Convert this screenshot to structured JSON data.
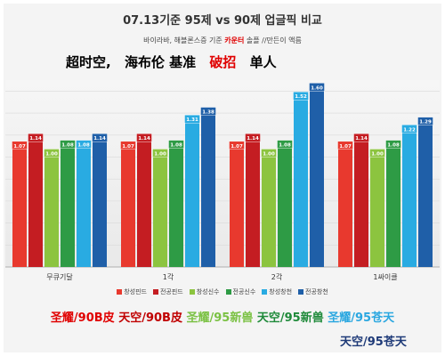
{
  "title": "07.13기준 95제 vs 90제 업글픽 비교",
  "subtitle_before": "바이라바, 해블론스증 기준 ",
  "subtitle_highlight": "카운터",
  "subtitle_after": " 솔플 //만든이 액름",
  "headline": {
    "part1": "超时空,",
    "part2": "海布伦 基准",
    "part3": "破招",
    "part4": "单人"
  },
  "bottom_labels": [
    {
      "text": "圣耀/90B皮",
      "color": "#e00000"
    },
    {
      "text": "天空/90B皮",
      "color": "#c00000"
    },
    {
      "text": "圣耀/95新兽",
      "color": "#7ac143"
    },
    {
      "text": "天空/95新兽",
      "color": "#1f8a3a"
    },
    {
      "text": "圣耀/95苍天",
      "color": "#2aa7e0"
    }
  ],
  "bottom_label_last": "天空/95苍天",
  "chart_data": {
    "type": "bar",
    "title": "07.13기준 95제 vs 90제 업글픽 비교",
    "categories": [
      "무큐기달",
      "1각",
      "2각",
      "1싸이클"
    ],
    "series": [
      {
        "name": "창성핀드",
        "color": "#e8392e",
        "values": [
          1.07,
          1.07,
          1.07,
          1.07
        ]
      },
      {
        "name": "전공핀드",
        "color": "#c41d22",
        "values": [
          1.14,
          1.14,
          1.14,
          1.14
        ]
      },
      {
        "name": "창성신수",
        "color": "#8cc43f",
        "values": [
          1.0,
          1.0,
          1.0,
          1.0
        ]
      },
      {
        "name": "전공신수",
        "color": "#2e9b45",
        "values": [
          1.08,
          1.08,
          1.08,
          1.08
        ]
      },
      {
        "name": "창성창천",
        "color": "#29abe2",
        "values": [
          1.08,
          1.31,
          1.52,
          1.22
        ]
      },
      {
        "name": "전공창천",
        "color": "#1f5fa8",
        "values": [
          1.14,
          1.38,
          1.6,
          1.29
        ]
      }
    ],
    "ylim": [
      0,
      1.7
    ],
    "xlabel": "",
    "ylabel": "",
    "grid": true,
    "legend_position": "bottom"
  }
}
